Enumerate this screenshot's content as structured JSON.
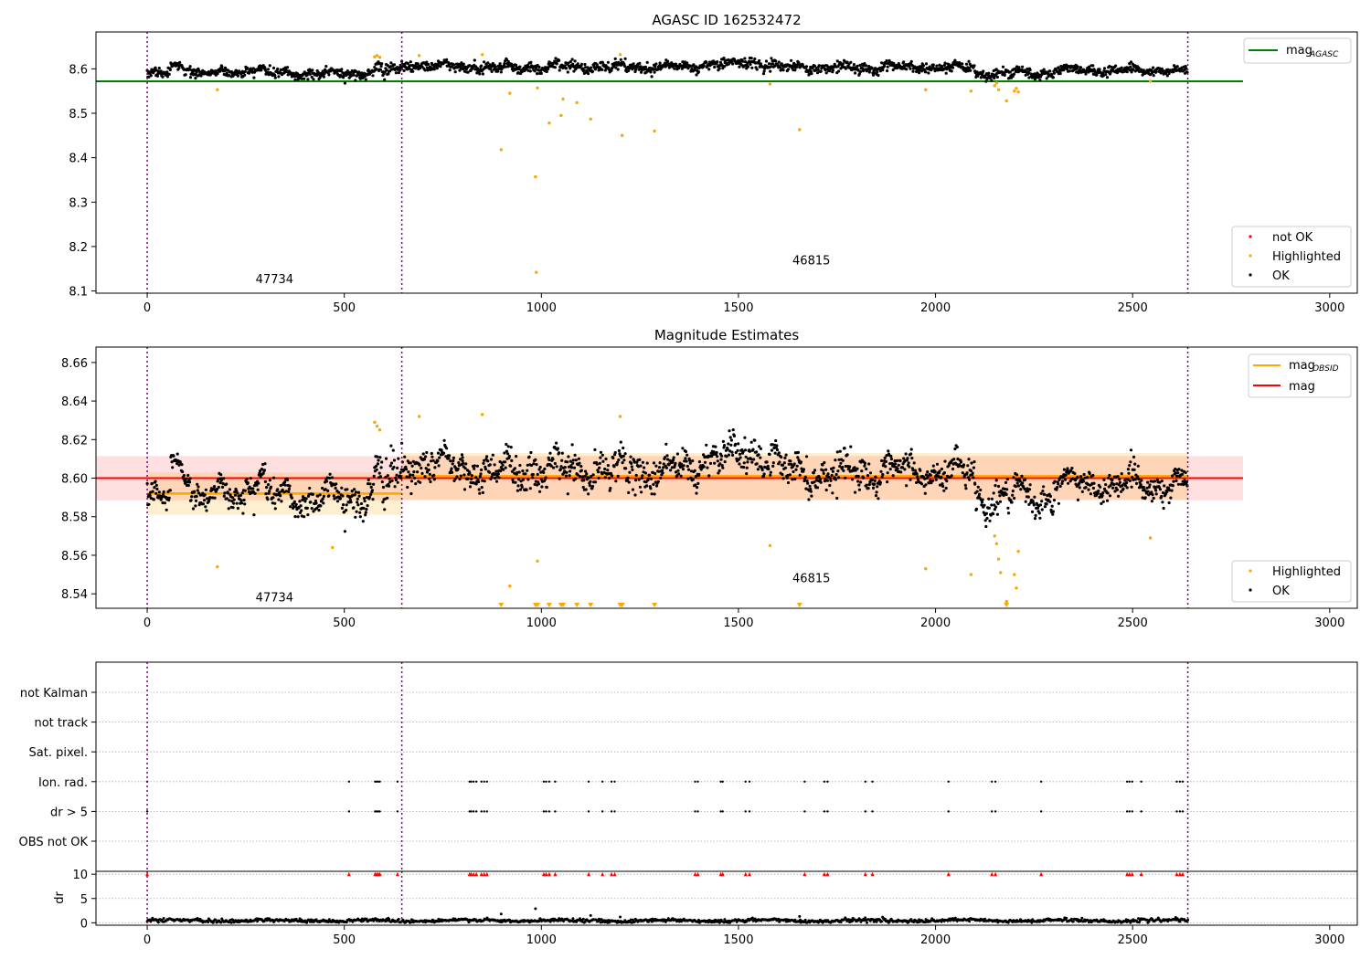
{
  "chart_data": [
    {
      "type": "scatter",
      "title": "AGASC ID 162532472",
      "xlabel": "",
      "ylabel": "",
      "xlim": [
        -130,
        3070
      ],
      "ylim": [
        8.095,
        8.683
      ],
      "x_ticks": [
        0,
        500,
        1000,
        1500,
        2000,
        2500,
        3000
      ],
      "y_ticks": [
        8.1,
        8.2,
        8.3,
        8.4,
        8.5,
        8.6
      ],
      "mag_agasc": 8.572,
      "mag_agasc_xrange": [
        -130,
        2780
      ],
      "obs_boundaries": [
        0,
        646,
        2640
      ],
      "obs_labels": [
        {
          "text": "47734",
          "x": 323,
          "y": 8.118
        },
        {
          "text": "46815",
          "x": 1685,
          "y": 8.16
        }
      ],
      "legend_top": {
        "name": "mag",
        "subscript": "AGASC",
        "color": "#008000",
        "placement": "top-right"
      },
      "legend_points": [
        {
          "name": "not OK",
          "color": "#ff0000"
        },
        {
          "name": "Highlighted",
          "color": "#ffa500"
        },
        {
          "name": "OK",
          "color": "#000000"
        }
      ],
      "ok_segments": [
        {
          "x0": 0,
          "x1": 60,
          "mean": 8.588,
          "noise": 0.006
        },
        {
          "x0": 60,
          "x1": 110,
          "mean": 8.607,
          "noise": 0.005
        },
        {
          "x0": 110,
          "x1": 250,
          "mean": 8.591,
          "noise": 0.006
        },
        {
          "x0": 250,
          "x1": 300,
          "mean": 8.6,
          "noise": 0.006
        },
        {
          "x0": 300,
          "x1": 560,
          "mean": 8.59,
          "noise": 0.007
        },
        {
          "x0": 560,
          "x1": 646,
          "mean": 8.598,
          "noise": 0.012
        },
        {
          "x0": 646,
          "x1": 800,
          "mean": 8.607,
          "noise": 0.007
        },
        {
          "x0": 800,
          "x1": 1000,
          "mean": 8.604,
          "noise": 0.008
        },
        {
          "x0": 1000,
          "x1": 1400,
          "mean": 8.604,
          "noise": 0.008
        },
        {
          "x0": 1400,
          "x1": 1600,
          "mean": 8.612,
          "noise": 0.007
        },
        {
          "x0": 1600,
          "x1": 2100,
          "mean": 8.603,
          "noise": 0.007
        },
        {
          "x0": 2100,
          "x1": 2300,
          "mean": 8.59,
          "noise": 0.007
        },
        {
          "x0": 2300,
          "x1": 2640,
          "mean": 8.597,
          "noise": 0.006
        }
      ],
      "highlighted": [
        [
          178,
          8.553
        ],
        [
          577,
          8.627
        ],
        [
          583,
          8.63
        ],
        [
          590,
          8.626
        ],
        [
          690,
          8.63
        ],
        [
          850,
          8.632
        ],
        [
          898,
          8.418
        ],
        [
          920,
          8.545
        ],
        [
          985,
          8.357
        ],
        [
          987,
          8.142
        ],
        [
          990,
          8.557
        ],
        [
          1020,
          8.478
        ],
        [
          1050,
          8.495
        ],
        [
          1055,
          8.532
        ],
        [
          1090,
          8.524
        ],
        [
          1125,
          8.487
        ],
        [
          1200,
          8.632
        ],
        [
          1205,
          8.45
        ],
        [
          1287,
          8.46
        ],
        [
          1580,
          8.566
        ],
        [
          1655,
          8.463
        ],
        [
          1975,
          8.553
        ],
        [
          2090,
          8.55
        ],
        [
          2150,
          8.562
        ],
        [
          2155,
          8.568
        ],
        [
          2160,
          8.553
        ],
        [
          2180,
          8.528
        ],
        [
          2200,
          8.55
        ],
        [
          2205,
          8.556
        ],
        [
          2210,
          8.548
        ],
        [
          2545,
          8.572
        ]
      ]
    },
    {
      "type": "scatter",
      "title": "Magnitude Estimates",
      "xlabel": "",
      "ylabel": "",
      "xlim": [
        -130,
        3070
      ],
      "ylim": [
        8.5325,
        8.668
      ],
      "x_ticks": [
        0,
        500,
        1000,
        1500,
        2000,
        2500,
        3000
      ],
      "y_ticks": [
        8.54,
        8.56,
        8.58,
        8.6,
        8.62,
        8.64,
        8.66
      ],
      "mag": 8.6,
      "mag_band": [
        8.5885,
        8.6115
      ],
      "mag_xrange": [
        -130,
        2780
      ],
      "mag_obsid": [
        {
          "x0": 0,
          "x1": 646,
          "value": 8.592,
          "band": [
            8.581,
            8.603
          ]
        },
        {
          "x0": 646,
          "x1": 2640,
          "value": 8.601,
          "band": [
            8.589,
            8.613
          ]
        }
      ],
      "obs_boundaries": [
        0,
        646,
        2640
      ],
      "obs_labels": [
        {
          "text": "47734",
          "x": 323,
          "y": 8.536
        },
        {
          "text": "46815",
          "x": 1685,
          "y": 8.546
        }
      ],
      "legend_top": [
        {
          "name": "mag",
          "subscript": "OBSID",
          "color": "#ffa500"
        },
        {
          "name": "mag",
          "subscript": "",
          "color": "#ff0000"
        }
      ],
      "legend_points": [
        {
          "name": "Highlighted",
          "color": "#ffa500"
        },
        {
          "name": "OK",
          "color": "#000000"
        }
      ],
      "highlighted": [
        [
          178,
          8.554
        ],
        [
          470,
          8.564
        ],
        [
          577,
          8.629
        ],
        [
          583,
          8.627
        ],
        [
          590,
          8.625
        ],
        [
          690,
          8.632
        ],
        [
          850,
          8.633
        ],
        [
          920,
          8.544
        ],
        [
          990,
          8.557
        ],
        [
          1200,
          8.632
        ],
        [
          1580,
          8.565
        ],
        [
          1975,
          8.553
        ],
        [
          2090,
          8.55
        ],
        [
          2150,
          8.57
        ],
        [
          2155,
          8.566
        ],
        [
          2160,
          8.558
        ],
        [
          2165,
          8.551
        ],
        [
          2180,
          8.536
        ],
        [
          2200,
          8.55
        ],
        [
          2205,
          8.543
        ],
        [
          2210,
          8.562
        ],
        [
          2545,
          8.569
        ]
      ],
      "clipped_markers": [
        898,
        985,
        990,
        1020,
        1050,
        1055,
        1090,
        1125,
        1200,
        1205,
        1287,
        1655,
        2180
      ]
    },
    {
      "type": "scatter",
      "title": "",
      "xlabel": "",
      "ylabel": "",
      "xlim": [
        -130,
        3070
      ],
      "categories": [
        "not Kalman",
        "not track",
        "Sat. pixel.",
        "Ion. rad.",
        "dr > 5",
        "OBS not OK"
      ],
      "flag_x": [
        0,
        512,
        578,
        582,
        586,
        590,
        635,
        818,
        822,
        828,
        835,
        848,
        855,
        862,
        1006,
        1012,
        1020,
        1035,
        1120,
        1155,
        1178,
        1186,
        1390,
        1397,
        1455,
        1460,
        1518,
        1528,
        1668,
        1718,
        1726,
        1822,
        1840,
        2033,
        2143,
        2152,
        2268,
        2486,
        2492,
        2499,
        2522,
        2612,
        2620,
        2627
      ],
      "flag_rows": [
        "Ion. rad.",
        "dr > 5"
      ],
      "obs_boundaries": [
        0,
        646,
        2640
      ]
    },
    {
      "type": "scatter",
      "title": "",
      "xlabel": "",
      "ylabel": "dr",
      "xlim": [
        -130,
        3070
      ],
      "ylim": [
        -0.5,
        10.6
      ],
      "x_ticks": [
        0,
        500,
        1000,
        1500,
        2000,
        2500,
        3000
      ],
      "y_ticks": [
        0,
        5,
        10
      ],
      "clip_value": 10,
      "obs_boundaries": [
        0,
        646,
        2640
      ],
      "dr_outliers": [
        [
          898,
          1.8
        ],
        [
          985,
          2.9
        ],
        [
          1125,
          1.5
        ],
        [
          1200,
          1.2
        ],
        [
          1655,
          1.3
        ]
      ]
    }
  ]
}
